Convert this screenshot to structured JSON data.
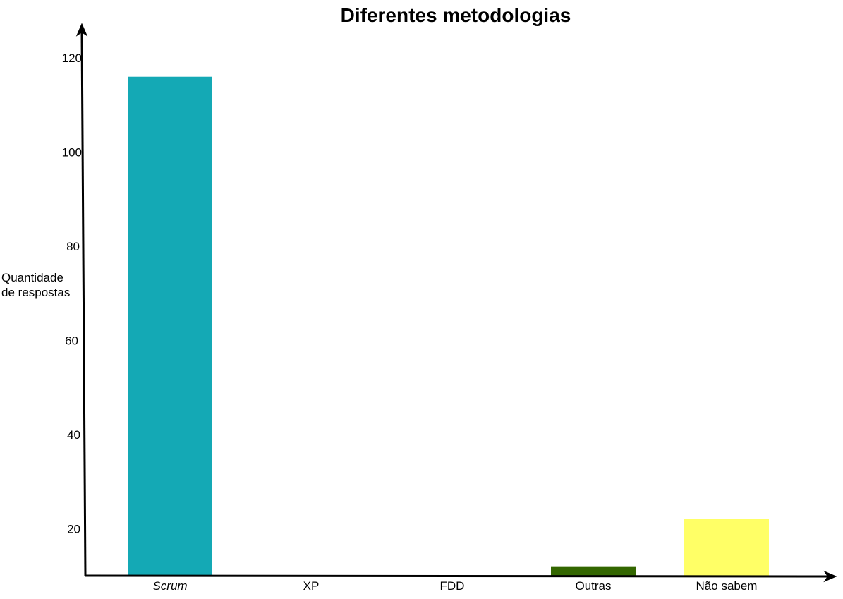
{
  "chart_data": {
    "type": "bar",
    "title": "Diferentes metodologias",
    "xlabel": "",
    "ylabel_lines": [
      "Quantidade",
      "de respostas"
    ],
    "categories": [
      "Scrum",
      "XP",
      "FDD",
      "Outras",
      "Não sabem"
    ],
    "italic_categories": [
      "Scrum"
    ],
    "values": [
      116,
      6,
      2,
      12,
      22
    ],
    "colors": [
      "#14A9B5",
      "#EE8908",
      "#E1523E",
      "#336600",
      "#FFFF66"
    ],
    "yticks": [
      20,
      40,
      60,
      80,
      100,
      120
    ],
    "ylim": [
      10,
      126
    ],
    "grid": false,
    "legend": "none"
  }
}
